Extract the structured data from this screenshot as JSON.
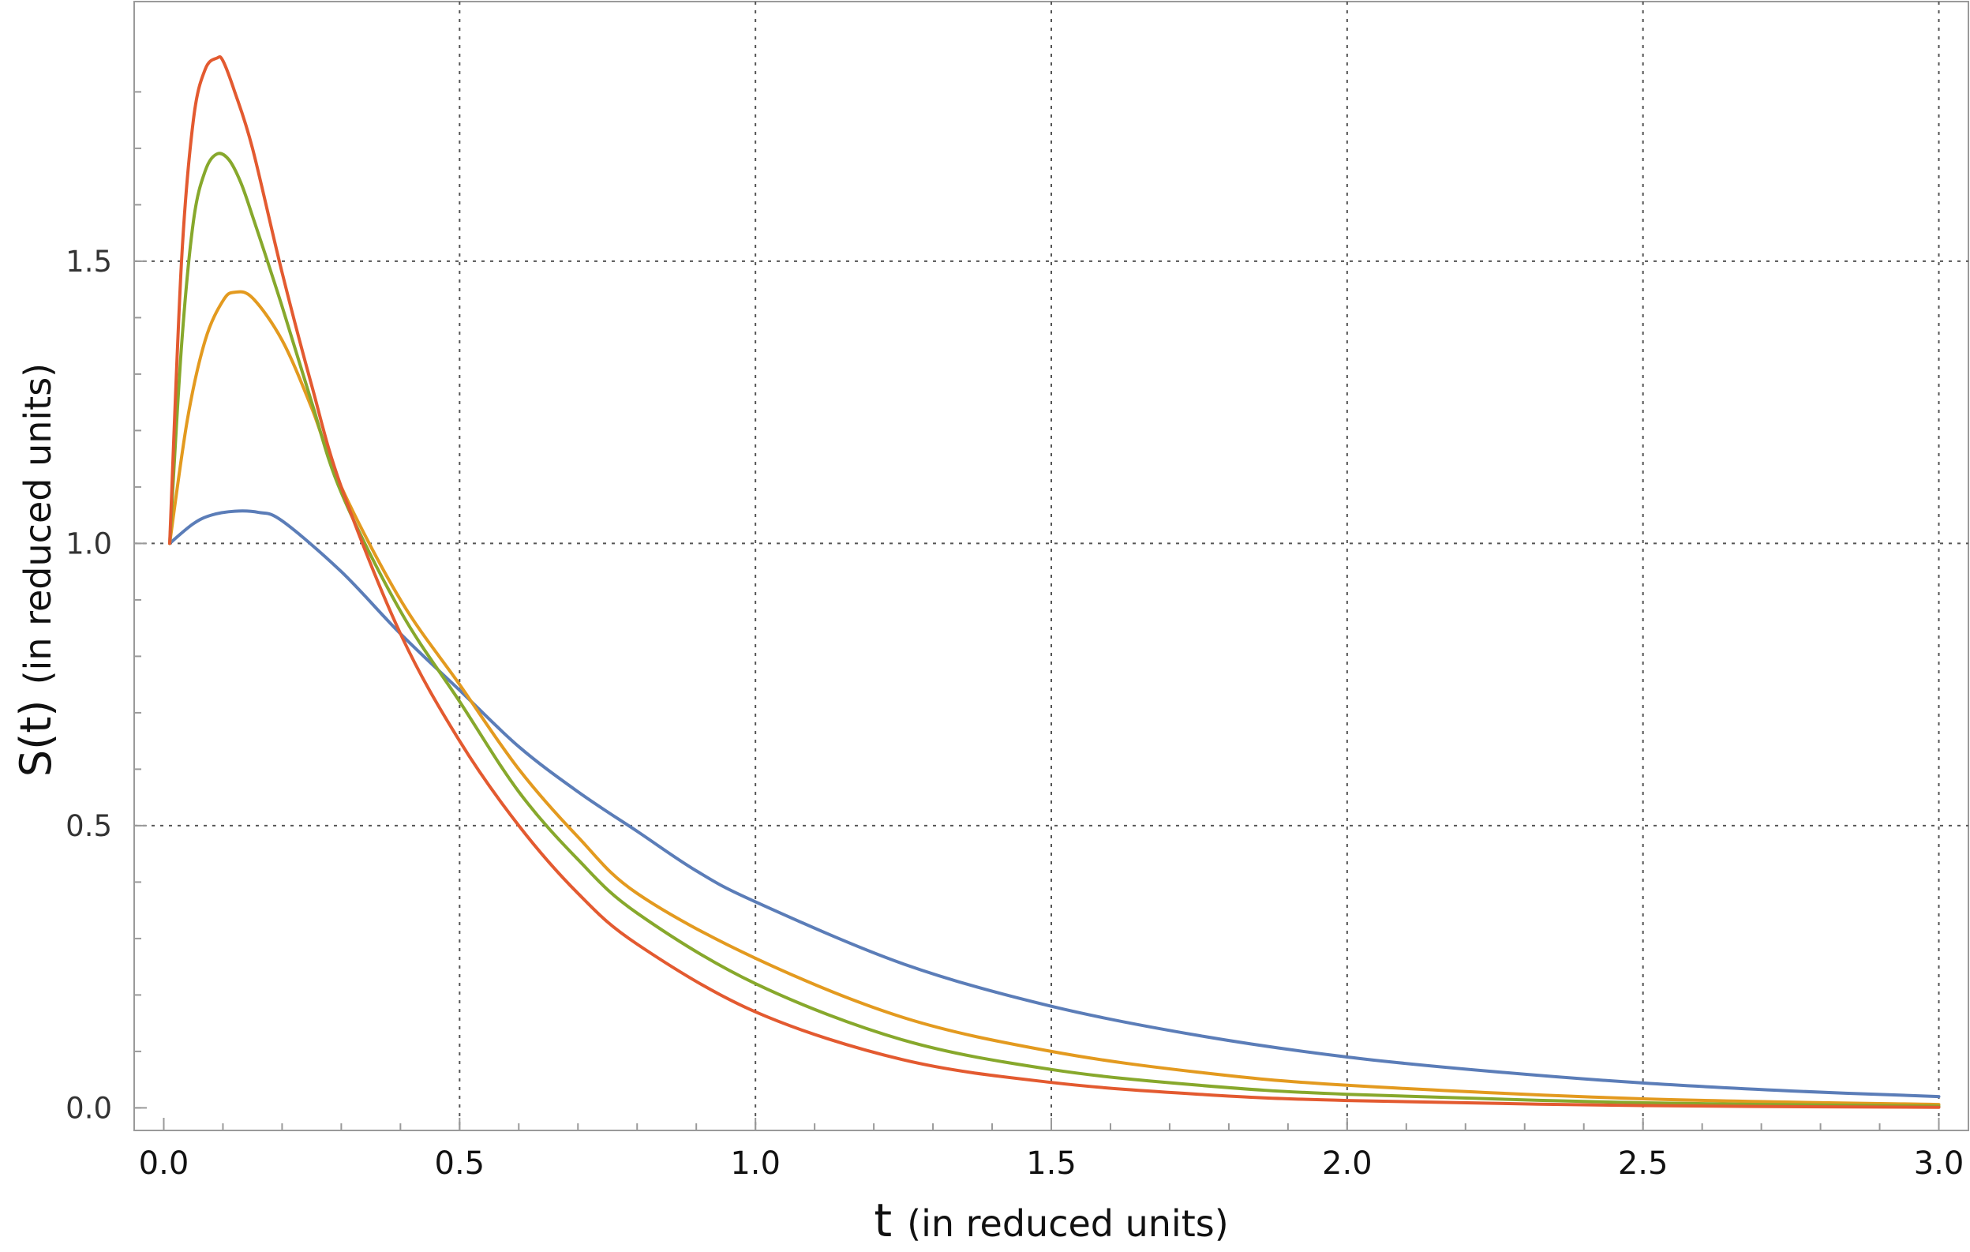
{
  "chart_data": {
    "type": "line",
    "title": "",
    "xlabel": {
      "symbol": "t",
      "units": "(in reduced units)"
    },
    "ylabel": {
      "symbol": "S(t)",
      "units": "(in reduced units)"
    },
    "xlim": [
      -0.05,
      3.05
    ],
    "ylim": [
      -0.04,
      1.96
    ],
    "xticks": [
      0.0,
      0.5,
      1.0,
      1.5,
      2.0,
      2.5,
      3.0
    ],
    "xtick_labels": [
      "0.0",
      "0.5",
      "1.0",
      "1.5",
      "2.0",
      "2.5",
      "3.0"
    ],
    "yticks": [
      0.0,
      0.5,
      1.0,
      1.5
    ],
    "ytick_labels": [
      "0.0",
      "0.5",
      "1.0",
      "1.5"
    ],
    "grid": true,
    "legend": "none",
    "series": [
      {
        "color": "#5b7db8",
        "x": [
          0.01,
          0.05,
          0.08,
          0.12,
          0.16,
          0.2,
          0.3,
          0.4,
          0.5,
          0.6,
          0.7,
          0.8,
          0.9,
          1.0,
          1.25,
          1.5,
          1.75,
          2.0,
          2.25,
          2.5,
          2.75,
          3.0
        ],
        "y": [
          1.0,
          1.035,
          1.05,
          1.057,
          1.055,
          1.04,
          0.95,
          0.84,
          0.74,
          0.64,
          0.56,
          0.49,
          0.42,
          0.365,
          0.255,
          0.18,
          0.128,
          0.09,
          0.064,
          0.044,
          0.03,
          0.02
        ]
      },
      {
        "color": "#e39a1f",
        "x": [
          0.01,
          0.04,
          0.07,
          0.1,
          0.12,
          0.15,
          0.2,
          0.25,
          0.3,
          0.4,
          0.5,
          0.6,
          0.7,
          0.8,
          1.0,
          1.25,
          1.5,
          1.75,
          2.0,
          2.5,
          3.0
        ],
        "y": [
          1.0,
          1.22,
          1.36,
          1.43,
          1.445,
          1.435,
          1.36,
          1.24,
          1.1,
          0.9,
          0.75,
          0.6,
          0.48,
          0.38,
          0.265,
          0.16,
          0.1,
          0.063,
          0.04,
          0.016,
          0.006
        ]
      },
      {
        "color": "#87a82c",
        "x": [
          0.01,
          0.03,
          0.05,
          0.07,
          0.09,
          0.11,
          0.13,
          0.15,
          0.2,
          0.25,
          0.3,
          0.4,
          0.5,
          0.6,
          0.7,
          0.8,
          1.0,
          1.25,
          1.5,
          1.75,
          2.0,
          2.5,
          3.0
        ],
        "y": [
          1.0,
          1.35,
          1.57,
          1.66,
          1.69,
          1.68,
          1.64,
          1.58,
          1.42,
          1.25,
          1.09,
          0.88,
          0.72,
          0.56,
          0.44,
          0.345,
          0.22,
          0.12,
          0.068,
          0.04,
          0.024,
          0.009,
          0.003
        ]
      },
      {
        "color": "#e35a30",
        "x": [
          0.01,
          0.03,
          0.05,
          0.07,
          0.09,
          0.1,
          0.12,
          0.15,
          0.2,
          0.25,
          0.3,
          0.4,
          0.5,
          0.6,
          0.7,
          0.8,
          1.0,
          1.25,
          1.5,
          1.75,
          2.0,
          2.5,
          3.0
        ],
        "y": [
          1.0,
          1.5,
          1.75,
          1.84,
          1.86,
          1.855,
          1.8,
          1.7,
          1.48,
          1.28,
          1.1,
          0.84,
          0.65,
          0.5,
          0.38,
          0.29,
          0.17,
          0.085,
          0.045,
          0.024,
          0.013,
          0.004,
          0.001
        ]
      }
    ]
  }
}
